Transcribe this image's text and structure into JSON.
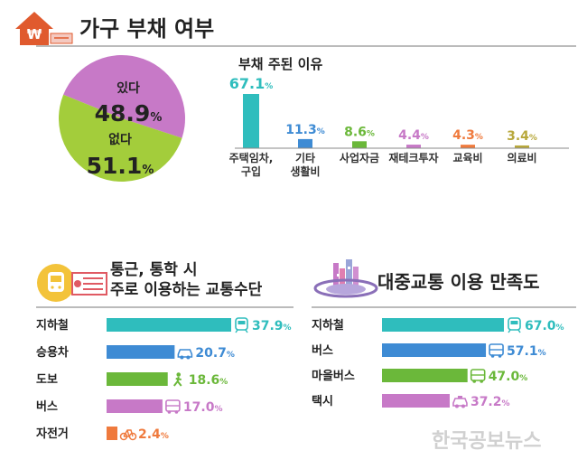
{
  "sections": {
    "debt": {
      "title": "가구 부채 여부",
      "icon": "house-won-icon"
    },
    "reason": {
      "title": "부채 주된 이유"
    },
    "commute": {
      "title_line1": "통근, 통학 시",
      "title_line2": "주로 이용하는 교통수단",
      "icon": "train-bus-icon"
    },
    "satisfaction": {
      "title": "대중교통 이용 만족도",
      "icon": "city-planet-icon"
    }
  },
  "watermark": "한국공보뉴스",
  "colors": {
    "pink": "#c779c7",
    "green": "#a3cd3b",
    "teal": "#2fbdbd",
    "blue": "#3e8bd4",
    "bar_green": "#6bb83a",
    "orange": "#ef7a3d",
    "olive": "#b8a83c",
    "house_red": "#e05a2e"
  },
  "chart_data": [
    {
      "type": "pie",
      "title": "가구 부채 여부",
      "slices": [
        {
          "label": "있다",
          "value": 48.9,
          "value_text": "48.9",
          "unit": "%",
          "color": "#c779c7"
        },
        {
          "label": "없다",
          "value": 51.1,
          "value_text": "51.1",
          "unit": "%",
          "color": "#a3cd3b"
        }
      ]
    },
    {
      "type": "bar",
      "title": "부채 주된 이유",
      "unit": "%",
      "categories": [
        [
          "주택임차,",
          "구입"
        ],
        [
          "기타",
          "생활비"
        ],
        [
          "사업자금"
        ],
        [
          "재테크투자"
        ],
        [
          "교육비"
        ],
        [
          "의료비"
        ]
      ],
      "values": [
        67.1,
        11.3,
        8.6,
        4.4,
        4.3,
        3.4
      ],
      "value_texts": [
        "67.1",
        "11.3",
        "8.6",
        "4.4",
        "4.3",
        "3.4"
      ],
      "colors": [
        "#2fbdbd",
        "#3e8bd4",
        "#6bb83a",
        "#c779c7",
        "#ef7a3d",
        "#b8a83c"
      ]
    },
    {
      "type": "bar",
      "orientation": "horizontal",
      "title": "통근, 통학 시 주로 이용하는 교통수단",
      "unit": "%",
      "categories": [
        "지하철",
        "승용차",
        "도보",
        "버스",
        "자전거"
      ],
      "values": [
        37.9,
        20.7,
        18.6,
        17.0,
        2.4
      ],
      "value_texts": [
        "37.9",
        "20.7",
        "18.6",
        "17.0",
        "2.4"
      ],
      "icons": [
        "subway-icon",
        "car-icon",
        "walker-icon",
        "bus-icon",
        "bicycle-icon"
      ],
      "colors": [
        "#2fbdbd",
        "#3e8bd4",
        "#6bb83a",
        "#c779c7",
        "#ef7a3d"
      ]
    },
    {
      "type": "bar",
      "orientation": "horizontal",
      "title": "대중교통 이용 만족도",
      "unit": "%",
      "categories": [
        "지하철",
        "버스",
        "마을버스",
        "택시"
      ],
      "values": [
        67.0,
        57.1,
        47.0,
        37.2
      ],
      "value_texts": [
        "67.0",
        "57.1",
        "47.0",
        "37.2"
      ],
      "icons": [
        "subway-icon",
        "bus-icon",
        "minibus-icon",
        "taxi-icon"
      ],
      "colors": [
        "#2fbdbd",
        "#3e8bd4",
        "#6bb83a",
        "#c779c7"
      ]
    }
  ]
}
